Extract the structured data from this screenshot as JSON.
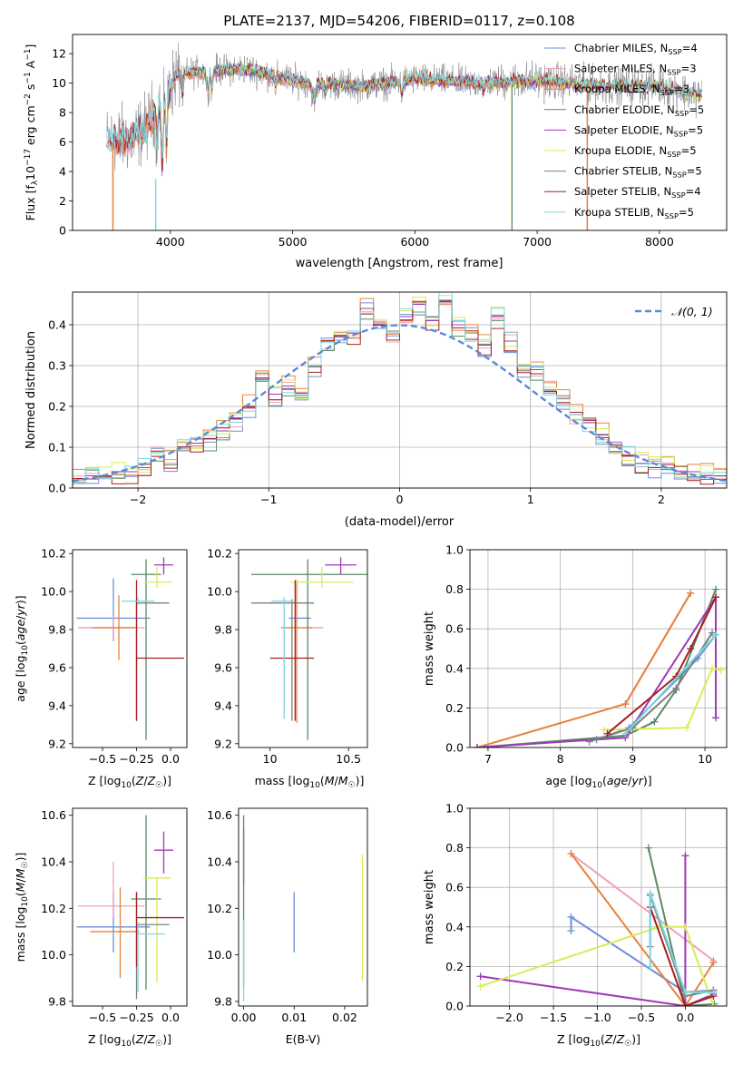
{
  "figure_title": "PLATE=2137, MJD=54206, FIBERID=0117, z=0.108",
  "colors": {
    "chabrier_miles": "#6e8fd8",
    "salpeter_miles": "#f0a0b8",
    "kroupa_miles": "#e8823a",
    "chabrier_elodie": "#5b8a64",
    "salpeter_elodie": "#a038b8",
    "kroupa_elodie": "#d8ec58",
    "chabrier_stelib": "#7f7f7f",
    "salpeter_stelib": "#a82020",
    "kroupa_stelib": "#7ad8e0",
    "gaussian": "#5a8ad6"
  },
  "chart_data": [
    {
      "id": "spectrum",
      "type": "line",
      "title": "PLATE=2137, MJD=54206, FIBERID=0117, z=0.108",
      "xlabel": "wavelength [Angstrom, rest frame]",
      "ylabel": "Flux [f_λ 10^-17 erg cm^-2 s^-1 A^-1]",
      "ylabel_parts": [
        "Flux [f",
        "λ",
        "10",
        "−17",
        " erg cm",
        "−2",
        " s",
        "−1",
        " A",
        "−1",
        "]"
      ],
      "xlim": [
        3200,
        8550
      ],
      "ylim": [
        0,
        13.3
      ],
      "xticks": [
        4000,
        5000,
        6000,
        7000,
        8000
      ],
      "yticks": [
        0,
        2,
        4,
        6,
        8,
        10,
        12
      ],
      "grid": false,
      "legend_position": "top-right",
      "legend": [
        {
          "base": "Chabrier MILES, N",
          "sub": "SSP",
          "value": "=4",
          "color_key": "chabrier_miles"
        },
        {
          "base": "Salpeter MILES, N",
          "sub": "SSP",
          "value": "=3",
          "color_key": "salpeter_miles"
        },
        {
          "base": "Kroupa MILES, N",
          "sub": "SSP",
          "value": "=3",
          "color_key": "kroupa_miles"
        },
        {
          "base": "Chabrier ELODIE, N",
          "sub": "SSP",
          "value": "=5",
          "color_key": "chabrier_elodie"
        },
        {
          "base": "Salpeter ELODIE, N",
          "sub": "SSP",
          "value": "=5",
          "color_key": "salpeter_elodie"
        },
        {
          "base": "Kroupa ELODIE, N",
          "sub": "SSP",
          "value": "=5",
          "color_key": "kroupa_elodie"
        },
        {
          "base": "Chabrier STELIB, N",
          "sub": "SSP",
          "value": "=5",
          "color_key": "chabrier_stelib"
        },
        {
          "base": "Salpeter STELIB, N",
          "sub": "SSP",
          "value": "=4",
          "color_key": "salpeter_stelib"
        },
        {
          "base": "Kroupa STELIB, N",
          "sub": "SSP",
          "value": "=5",
          "color_key": "kroupa_stelib"
        }
      ],
      "continuum_knots": {
        "wavelength": [
          3480,
          3700,
          3800,
          3880,
          3950,
          4050,
          4300,
          4600,
          5000,
          5200,
          5600,
          6000,
          6500,
          7000,
          7500,
          8000,
          8300
        ],
        "flux": [
          6.1,
          6.3,
          7.0,
          8.3,
          8.8,
          10.6,
          10.8,
          11.0,
          10.2,
          10.0,
          9.8,
          10.3,
          10.0,
          10.2,
          9.8,
          9.8,
          9.2
        ]
      }
    },
    {
      "id": "residuals",
      "type": "histogram",
      "xlabel": "(data-model)/error",
      "ylabel": "Normed distribution",
      "xlim": [
        -2.5,
        2.5
      ],
      "ylim": [
        0,
        0.48
      ],
      "xticks": [
        -2,
        -1,
        0,
        1,
        2
      ],
      "yticks": [
        0.0,
        0.1,
        0.2,
        0.3,
        0.4
      ],
      "grid": true,
      "legend": [
        {
          "label": "𝒩(0, 1)",
          "color_key": "gaussian",
          "style": "dashed"
        }
      ],
      "bin_edges_start": -2.5,
      "bin_width": 0.1,
      "reference_series": {
        "name": "Salpeter ELODIE",
        "values": [
          0.02,
          0.03,
          0.03,
          0.04,
          0.04,
          0.05,
          0.09,
          0.07,
          0.1,
          0.11,
          0.12,
          0.14,
          0.17,
          0.2,
          0.27,
          0.23,
          0.25,
          0.22,
          0.3,
          0.36,
          0.37,
          0.38,
          0.44,
          0.4,
          0.38,
          0.42,
          0.45,
          0.41,
          0.46,
          0.4,
          0.38,
          0.35,
          0.42,
          0.36,
          0.3,
          0.29,
          0.24,
          0.22,
          0.18,
          0.16,
          0.13,
          0.1,
          0.08,
          0.06,
          0.05,
          0.05,
          0.04,
          0.04,
          0.03,
          0.03
        ]
      }
    },
    {
      "id": "age_vs_Z",
      "type": "errorbar",
      "xlabel": "Z [log10(Z/Z☉)]",
      "ylabel": "age [log10(age/yr)]",
      "xlim": [
        -0.72,
        0.12
      ],
      "ylim": [
        9.18,
        10.22
      ],
      "xticks": [
        -0.5,
        -0.25,
        0.0
      ],
      "xticklabels": [
        "−0.5",
        "−0.25",
        "0.0"
      ],
      "yticks": [
        9.2,
        9.4,
        9.6,
        9.8,
        10.0,
        10.2
      ],
      "points": [
        {
          "model": "chabrier_miles",
          "x": -0.42,
          "xerr": [
            0.27,
            0.27
          ],
          "y": 9.86,
          "yerr": [
            0.12,
            0.21
          ]
        },
        {
          "model": "salpeter_miles",
          "x": -0.42,
          "xerr": [
            0.26,
            0.23
          ],
          "y": 9.81,
          "yerr": [
            0.06,
            0.06
          ]
        },
        {
          "model": "kroupa_miles",
          "x": -0.38,
          "xerr": [
            0.2,
            0.12
          ],
          "y": 9.81,
          "yerr": [
            0.17,
            0.17
          ]
        },
        {
          "model": "chabrier_elodie",
          "x": -0.18,
          "xerr": [
            0.11,
            0.11
          ],
          "y": 10.09,
          "yerr": [
            0.87,
            0.08
          ]
        },
        {
          "model": "salpeter_elodie",
          "x": -0.05,
          "xerr": [
            0.07,
            0.07
          ],
          "y": 10.14,
          "yerr": [
            0.05,
            0.04
          ]
        },
        {
          "model": "kroupa_elodie",
          "x": -0.1,
          "xerr": [
            0.1,
            0.11
          ],
          "y": 10.05,
          "yerr": [
            0.03,
            0.08
          ]
        },
        {
          "model": "chabrier_stelib",
          "x": -0.25,
          "xerr": [
            0.0,
            0.24
          ],
          "y": 9.94,
          "yerr": [
            0.62,
            0.02
          ]
        },
        {
          "model": "salpeter_stelib",
          "x": -0.25,
          "xerr": [
            0.0,
            0.35
          ],
          "y": 9.65,
          "yerr": [
            0.33,
            0.41
          ]
        },
        {
          "model": "kroupa_stelib",
          "x": -0.24,
          "xerr": [
            0.12,
            0.12
          ],
          "y": 9.95,
          "yerr": [
            0.02,
            0.02
          ]
        }
      ]
    },
    {
      "id": "age_vs_mass",
      "type": "errorbar",
      "xlabel": "mass [log10(M/M☉)]",
      "xlim": [
        9.8,
        10.62
      ],
      "ylim": [
        9.18,
        10.22
      ],
      "xticks": [
        10.0,
        10.5
      ],
      "yticks": [
        9.2,
        9.4,
        9.6,
        9.8,
        10.0,
        10.2
      ],
      "points": [
        {
          "model": "chabrier_miles",
          "x": 10.12,
          "xerr": [
            0.0,
            0.14
          ],
          "y": 9.86,
          "yerr": [
            0.0,
            0.0
          ]
        },
        {
          "model": "salpeter_miles",
          "x": 10.24,
          "xerr": [
            0.0,
            0.1
          ],
          "y": 9.81,
          "yerr": [
            0.0,
            0.0
          ]
        },
        {
          "model": "kroupa_miles",
          "x": 10.17,
          "xerr": [
            0.1,
            0.1
          ],
          "y": 9.81,
          "yerr": [
            0.5,
            0.25
          ]
        },
        {
          "model": "chabrier_elodie",
          "x": 10.24,
          "xerr": [
            0.36,
            0.38
          ],
          "y": 10.09,
          "yerr": [
            0.87,
            0.08
          ]
        },
        {
          "model": "salpeter_elodie",
          "x": 10.45,
          "xerr": [
            0.1,
            0.1
          ],
          "y": 10.14,
          "yerr": [
            0.05,
            0.04
          ]
        },
        {
          "model": "kroupa_elodie",
          "x": 10.33,
          "xerr": [
            0.2,
            0.2
          ],
          "y": 10.05,
          "yerr": [
            0.03,
            0.08
          ]
        },
        {
          "model": "chabrier_stelib",
          "x": 10.14,
          "xerr": [
            0.26,
            0.14
          ],
          "y": 9.94,
          "yerr": [
            0.62,
            0.02
          ]
        },
        {
          "model": "salpeter_stelib",
          "x": 10.16,
          "xerr": [
            0.16,
            0.12
          ],
          "y": 9.65,
          "yerr": [
            0.33,
            0.41
          ]
        },
        {
          "model": "kroupa_stelib",
          "x": 10.09,
          "xerr": [
            0.08,
            0.06
          ],
          "y": 9.95,
          "yerr": [
            0.62,
            0.02
          ]
        }
      ]
    },
    {
      "id": "weight_vs_age",
      "type": "line",
      "xlabel": "age [log10(age/yr)]",
      "ylabel": "mass weight",
      "xlim": [
        6.75,
        10.3
      ],
      "ylim": [
        0,
        1.0
      ],
      "xticks": [
        7,
        8,
        9,
        10
      ],
      "yticks": [
        0.0,
        0.2,
        0.4,
        0.6,
        0.8,
        1.0
      ],
      "grid": true,
      "series": [
        {
          "model": "chabrier_miles",
          "x": [
            8.5,
            8.95,
            9.9,
            10.15
          ],
          "y": [
            0.04,
            0.1,
            0.45,
            0.57
          ]
        },
        {
          "model": "salpeter_miles",
          "x": [
            8.9,
            9.8
          ],
          "y": [
            0.22,
            0.78
          ]
        },
        {
          "model": "kroupa_miles",
          "x": [
            6.85,
            8.9,
            9.8
          ],
          "y": [
            0.0,
            0.22,
            0.78
          ]
        },
        {
          "model": "chabrier_elodie",
          "x": [
            6.85,
            8.9,
            9.3,
            9.6,
            10.15
          ],
          "y": [
            0.0,
            0.06,
            0.13,
            0.29,
            0.8
          ]
        },
        {
          "model": "salpeter_elodie",
          "x": [
            6.85,
            8.9,
            10.15,
            10.15
          ],
          "y": [
            0.0,
            0.05,
            0.76,
            0.15
          ]
        },
        {
          "model": "kroupa_elodie",
          "x": [
            8.6,
            9.75,
            10.1,
            10.22
          ],
          "y": [
            0.09,
            0.1,
            0.4,
            0.39
          ]
        },
        {
          "model": "chabrier_stelib",
          "x": [
            8.4,
            9.0,
            9.6,
            10.1
          ],
          "y": [
            0.03,
            0.1,
            0.3,
            0.58
          ]
        },
        {
          "model": "salpeter_stelib",
          "x": [
            8.65,
            9.6,
            9.8,
            10.15
          ],
          "y": [
            0.07,
            0.36,
            0.5,
            0.76
          ]
        },
        {
          "model": "kroupa_stelib",
          "x": [
            8.9,
            10.15
          ],
          "y": [
            0.07,
            0.57
          ]
        }
      ]
    },
    {
      "id": "mass_vs_Z",
      "type": "errorbar",
      "xlabel": "Z [log10(Z/Z☉)]",
      "ylabel": "mass [log10(M/M☉)]",
      "xlim": [
        -0.72,
        0.12
      ],
      "ylim": [
        9.78,
        10.63
      ],
      "xticks": [
        -0.5,
        -0.25,
        0.0
      ],
      "xticklabels": [
        "−0.5",
        "−0.25",
        "0.0"
      ],
      "yticks": [
        9.8,
        10.0,
        10.2,
        10.4,
        10.6
      ],
      "points": [
        {
          "model": "chabrier_miles",
          "x": -0.42,
          "xerr": [
            0.27,
            0.27
          ],
          "y": 10.12,
          "yerr": [
            0.11,
            0.15
          ]
        },
        {
          "model": "salpeter_miles",
          "x": -0.42,
          "xerr": [
            0.26,
            0.23
          ],
          "y": 10.21,
          "yerr": [
            0.05,
            0.19
          ]
        },
        {
          "model": "kroupa_miles",
          "x": -0.37,
          "xerr": [
            0.22,
            0.14
          ],
          "y": 10.1,
          "yerr": [
            0.2,
            0.19
          ]
        },
        {
          "model": "chabrier_elodie",
          "x": -0.18,
          "xerr": [
            0.11,
            0.11
          ],
          "y": 10.24,
          "yerr": [
            0.39,
            0.36
          ]
        },
        {
          "model": "salpeter_elodie",
          "x": -0.05,
          "xerr": [
            0.07,
            0.07
          ],
          "y": 10.45,
          "yerr": [
            0.1,
            0.08
          ]
        },
        {
          "model": "kroupa_elodie",
          "x": -0.1,
          "xerr": [
            0.1,
            0.1
          ],
          "y": 10.33,
          "yerr": [
            0.45,
            0.0
          ]
        },
        {
          "model": "chabrier_stelib",
          "x": -0.25,
          "xerr": [
            0.0,
            0.24
          ],
          "y": 10.13,
          "yerr": [
            0.32,
            0.14
          ]
        },
        {
          "model": "salpeter_stelib",
          "x": -0.25,
          "xerr": [
            0.0,
            0.35
          ],
          "y": 10.16,
          "yerr": [
            0.21,
            0.11
          ]
        },
        {
          "model": "kroupa_stelib",
          "x": -0.24,
          "xerr": [
            0.0,
            0.2
          ],
          "y": 10.09,
          "yerr": [
            0.25,
            0.05
          ]
        }
      ]
    },
    {
      "id": "mass_vs_ebv",
      "type": "errorbar",
      "xlabel": "E(B-V)",
      "xlim": [
        -0.001,
        0.0245
      ],
      "ylim": [
        9.78,
        10.63
      ],
      "xticks": [
        0.0,
        0.01,
        0.02
      ],
      "xticklabels": [
        "0.00",
        "0.01",
        "0.02"
      ],
      "yticks": [
        9.8,
        10.0,
        10.2,
        10.4,
        10.6
      ],
      "points": [
        {
          "model": "chabrier_miles",
          "x": 0.01,
          "xerr": [
            0,
            0
          ],
          "y": 10.14,
          "yerr": [
            0.13,
            0.13
          ]
        },
        {
          "model": "salpeter_elodie",
          "x": 0.0,
          "xerr": [
            0,
            0
          ],
          "y": 10.42,
          "yerr": [
            0.12,
            0.12
          ]
        },
        {
          "model": "chabrier_elodie",
          "x": 0.0,
          "xerr": [
            0,
            0
          ],
          "y": 10.24,
          "yerr": [
            0.38,
            0.36
          ]
        },
        {
          "model": "kroupa_elodie",
          "x": 0.0235,
          "xerr": [
            0,
            0
          ],
          "y": 10.16,
          "yerr": [
            0.27,
            0.27
          ]
        },
        {
          "model": "kroupa_stelib",
          "x": 0.0,
          "xerr": [
            0,
            0
          ],
          "y": 10.05,
          "yerr": [
            0.25,
            0.1
          ]
        }
      ]
    },
    {
      "id": "weight_vs_Z",
      "type": "line",
      "xlabel": "Z [log10(Z/Z☉)]",
      "ylabel": "mass weight",
      "xlim": [
        -2.45,
        0.47
      ],
      "ylim": [
        0,
        1.0
      ],
      "xticks": [
        -2.0,
        -1.5,
        -1.0,
        -0.5,
        0.0
      ],
      "xticklabels": [
        "−2.0",
        "−1.5",
        "−1.0",
        "−0.5",
        "0.0"
      ],
      "yticks": [
        0.0,
        0.2,
        0.4,
        0.6,
        0.8,
        1.0
      ],
      "grid": true,
      "series": [
        {
          "model": "chabrier_miles",
          "x": [
            -1.3,
            -1.3,
            0.0,
            0.32
          ],
          "y": [
            0.38,
            0.45,
            0.07,
            0.08
          ]
        },
        {
          "model": "salpeter_miles",
          "x": [
            -1.3,
            0.32
          ],
          "y": [
            0.77,
            0.23
          ]
        },
        {
          "model": "kroupa_miles",
          "x": [
            -1.3,
            0.0,
            0.32
          ],
          "y": [
            0.77,
            0.0,
            0.22
          ]
        },
        {
          "model": "chabrier_elodie",
          "x": [
            -0.42,
            0.0,
            0.33
          ],
          "y": [
            0.8,
            0.0,
            0.01
          ]
        },
        {
          "model": "salpeter_elodie",
          "x": [
            -2.33,
            0.0,
            0.0,
            0.0,
            0.32
          ],
          "y": [
            0.15,
            0.0,
            0.76,
            0.0,
            0.06
          ]
        },
        {
          "model": "kroupa_elodie",
          "x": [
            -2.33,
            -0.3,
            0.0,
            0.32
          ],
          "y": [
            0.1,
            0.4,
            0.4,
            0.0
          ]
        },
        {
          "model": "chabrier_stelib",
          "x": [
            -0.4,
            -0.4,
            0.0,
            0.32
          ],
          "y": [
            0.3,
            0.56,
            0.05,
            0.08
          ]
        },
        {
          "model": "salpeter_stelib",
          "x": [
            -0.4,
            0.0,
            0.32
          ],
          "y": [
            0.5,
            0.0,
            0.05
          ]
        },
        {
          "model": "kroupa_stelib",
          "x": [
            -0.4,
            -0.4,
            0.0,
            0.32
          ],
          "y": [
            0.2,
            0.57,
            0.07,
            0.07
          ]
        }
      ]
    }
  ]
}
